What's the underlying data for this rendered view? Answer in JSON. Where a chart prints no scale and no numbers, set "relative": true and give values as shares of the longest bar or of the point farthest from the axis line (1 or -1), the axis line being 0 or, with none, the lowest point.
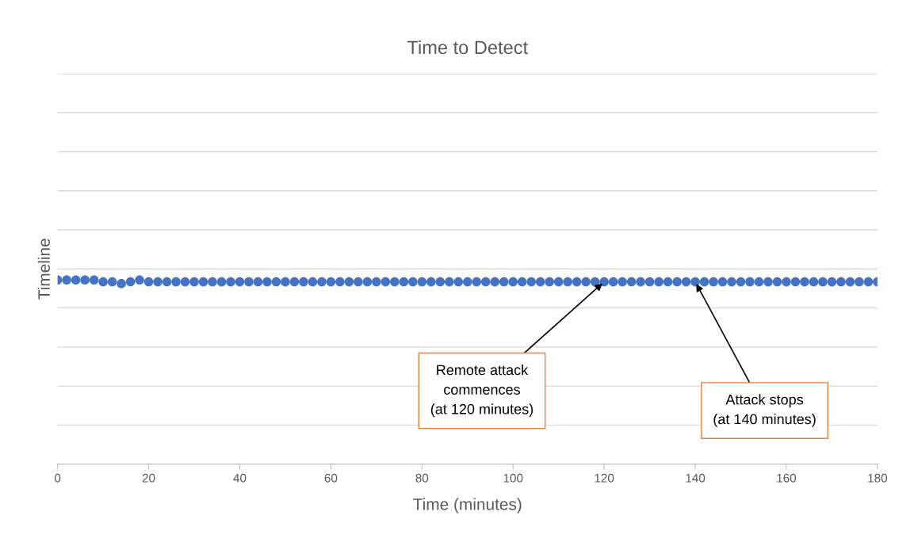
{
  "chart_data": {
    "type": "scatter",
    "title": "Time to Detect",
    "xlabel": "Time (minutes)",
    "ylabel": "Timeline",
    "relative": true,
    "grid": "y",
    "marker": "circle",
    "tick_labels": "x",
    "xlim": [
      0,
      180
    ],
    "xticks": [
      0,
      20,
      40,
      60,
      80,
      100,
      120,
      140,
      160,
      180
    ],
    "x": [
      0,
      2,
      4,
      6,
      8,
      10,
      12,
      14,
      16,
      18,
      20,
      22,
      24,
      26,
      28,
      30,
      32,
      34,
      36,
      38,
      40,
      42,
      44,
      46,
      48,
      50,
      52,
      54,
      56,
      58,
      60,
      62,
      64,
      66,
      68,
      70,
      72,
      74,
      76,
      78,
      80,
      82,
      84,
      86,
      88,
      90,
      92,
      94,
      96,
      98,
      100,
      102,
      104,
      106,
      108,
      110,
      112,
      114,
      116,
      118,
      120,
      122,
      124,
      126,
      128,
      130,
      132,
      134,
      136,
      138,
      140,
      142,
      144,
      146,
      148,
      150,
      152,
      154,
      156,
      158,
      160,
      162,
      164,
      166,
      168,
      170,
      172,
      174,
      176,
      178,
      180
    ],
    "series": [
      {
        "color": "#4472c4",
        "values": [
          1,
          1,
          1,
          1,
          1,
          0.99,
          0.99,
          0.98,
          0.99,
          1,
          0.99,
          0.99,
          0.99,
          0.99,
          0.99,
          0.99,
          0.99,
          0.99,
          0.99,
          0.99,
          0.99,
          0.99,
          0.99,
          0.99,
          0.99,
          0.99,
          0.99,
          0.99,
          0.99,
          0.99,
          0.99,
          0.99,
          0.99,
          0.99,
          0.99,
          0.99,
          0.99,
          0.99,
          0.99,
          0.99,
          0.99,
          0.99,
          0.99,
          0.99,
          0.99,
          0.99,
          0.99,
          0.99,
          0.99,
          0.99,
          0.99,
          0.99,
          0.99,
          0.99,
          0.99,
          0.99,
          0.99,
          0.99,
          0.99,
          0.99,
          0.99,
          0.99,
          0.99,
          0.99,
          0.99,
          0.99,
          0.99,
          0.99,
          0.99,
          0.99,
          0.99,
          0.99,
          0.99,
          0.99,
          0.99,
          0.99,
          0.99,
          0.99,
          0.99,
          0.99,
          0.99,
          0.99,
          0.99,
          0.99,
          0.99,
          0.99,
          0.99,
          0.99,
          0.99,
          0.99,
          0.99
        ]
      }
    ],
    "annotations": [
      {
        "text": "Remote attack\ncommences\n(at 120 minutes)",
        "x": 120,
        "y": 0.99
      },
      {
        "text": "Attack stops\n(at 140 minutes)",
        "x": 140,
        "y": 0.99
      }
    ]
  }
}
